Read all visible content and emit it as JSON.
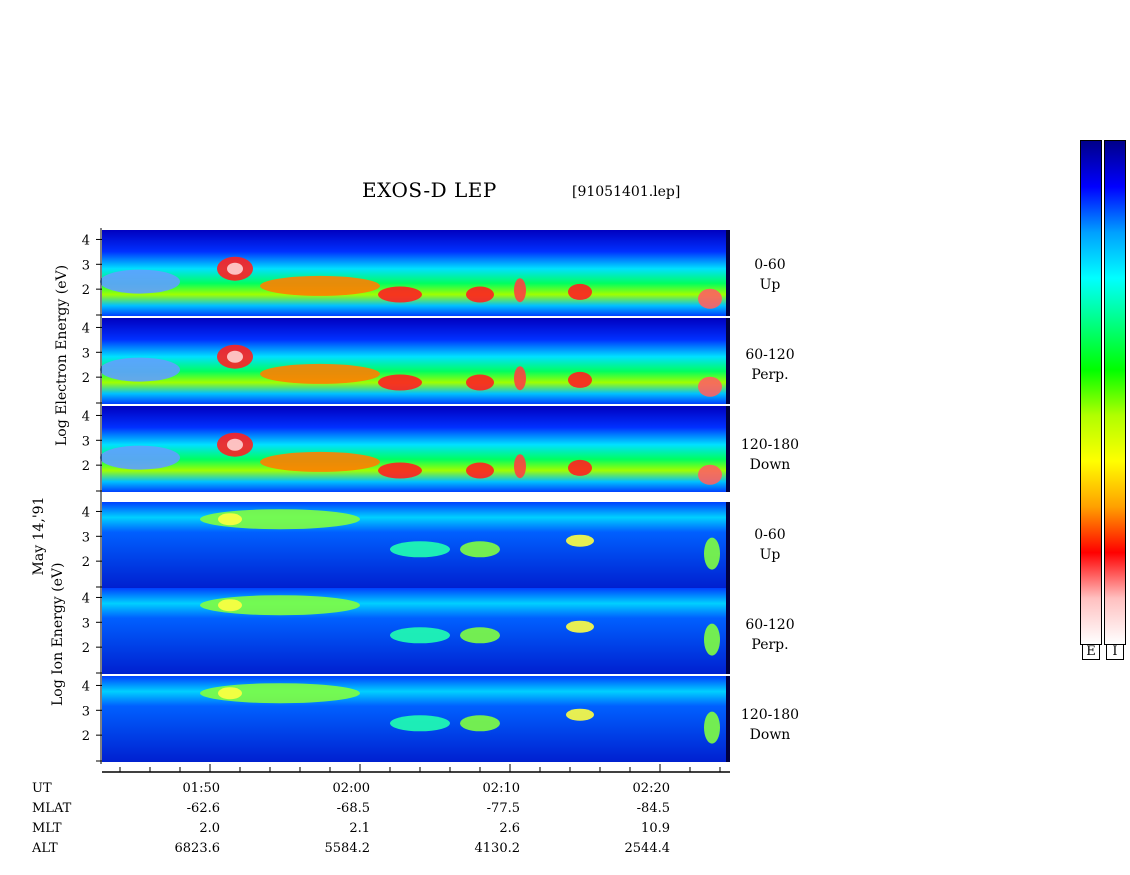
{
  "title": "EXOS-D LEP",
  "file_label": "[91051401.lep]",
  "date_label": "May 14,'91",
  "electron_axis_label": [
    "Log",
    "Electron",
    "Energy"
  ],
  "electron_axis_unit": "(eV)",
  "ion_axis_label": [
    "Log",
    "Ion",
    "Energy"
  ],
  "ion_axis_unit": "(eV)",
  "panels": [
    {
      "species": "electron",
      "angle": "0-60",
      "dir": "Up"
    },
    {
      "species": "electron",
      "angle": "60-120",
      "dir": "Perp."
    },
    {
      "species": "electron",
      "angle": "120-180",
      "dir": "Down"
    },
    {
      "species": "ion",
      "angle": "0-60",
      "dir": "Up"
    },
    {
      "species": "ion",
      "angle": "60-120",
      "dir": "Perp."
    },
    {
      "species": "ion",
      "angle": "120-180",
      "dir": "Down"
    }
  ],
  "colorbar_labels": [
    "E",
    "I"
  ],
  "colorbar_colors": [
    "#00008a",
    "#0000ff",
    "#00a0ff",
    "#00ffff",
    "#00ff80",
    "#00ff00",
    "#b0ff00",
    "#ffff00",
    "#ffa000",
    "#ff0000",
    "#ffc0c0",
    "#ffffff"
  ],
  "chart_data": {
    "type": "heatmap",
    "y_ticks": [
      "2",
      "3",
      "4"
    ],
    "x_row_labels": [
      "UT",
      "MLAT",
      "MLT",
      "ALT"
    ],
    "x_columns": [
      {
        "UT": "01:50",
        "MLAT": "-62.6",
        "MLT": "2.0",
        "ALT": "6823.6"
      },
      {
        "UT": "02:00",
        "MLAT": "-68.5",
        "MLT": "2.1",
        "ALT": "5584.2"
      },
      {
        "UT": "02:10",
        "MLAT": "-77.5",
        "MLT": "2.6",
        "ALT": "4130.2"
      },
      {
        "UT": "02:20",
        "MLAT": "-84.5",
        "MLT": "10.9",
        "ALT": "2544.4"
      }
    ]
  }
}
